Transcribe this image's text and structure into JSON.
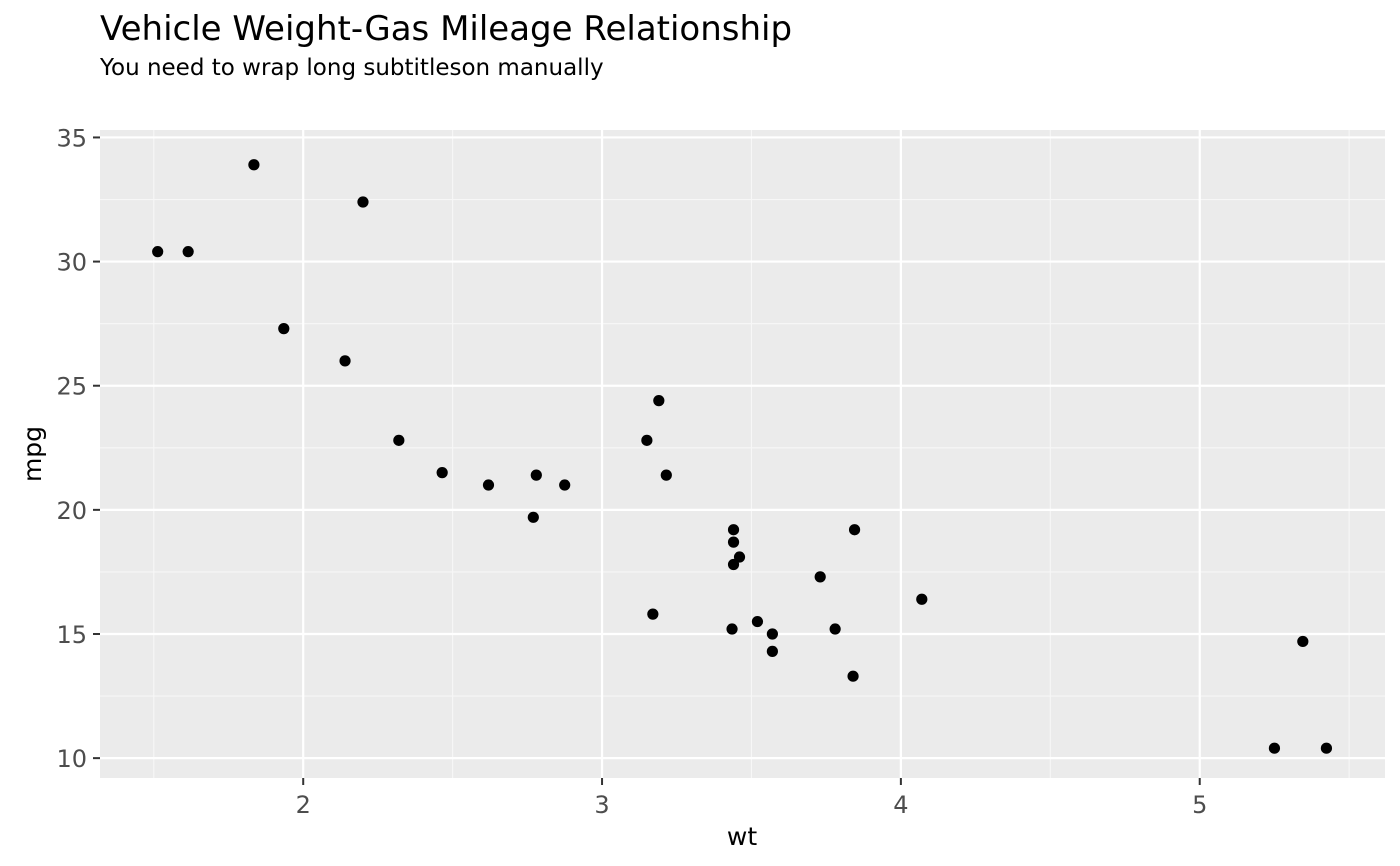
{
  "chart_data": {
    "type": "scatter",
    "title": "Vehicle Weight-Gas Mileage Relationship",
    "subtitle": "You need to wrap long subtitleson manually",
    "xlabel": "wt",
    "ylabel": "mpg",
    "xlim": [
      1.32,
      5.62
    ],
    "ylim": [
      9.2,
      35.3
    ],
    "x_ticks": [
      2,
      3,
      4,
      5
    ],
    "x_tick_labels": [
      "2",
      "3",
      "4",
      "5"
    ],
    "x_minor_ticks": [
      1.5,
      2.5,
      3.5,
      4.5,
      5.5
    ],
    "y_ticks": [
      10,
      15,
      20,
      25,
      30,
      35
    ],
    "y_tick_labels": [
      "10",
      "15",
      "20",
      "25",
      "30",
      "35"
    ],
    "y_minor_ticks": [
      12.5,
      17.5,
      22.5,
      27.5,
      32.5
    ],
    "grid": true,
    "legend": "none",
    "colors": {
      "panel_background": "#ebebeb",
      "grid_major": "#ffffff",
      "grid_minor": "#f7f7f7",
      "point": "#000000",
      "tick_text": "#4d4d4d",
      "tick_mark": "#333333"
    },
    "points": [
      {
        "x": 2.62,
        "y": 21.0
      },
      {
        "x": 2.875,
        "y": 21.0
      },
      {
        "x": 2.32,
        "y": 22.8
      },
      {
        "x": 3.215,
        "y": 21.4
      },
      {
        "x": 3.44,
        "y": 18.7
      },
      {
        "x": 3.46,
        "y": 18.1
      },
      {
        "x": 3.57,
        "y": 14.3
      },
      {
        "x": 3.19,
        "y": 24.4
      },
      {
        "x": 3.15,
        "y": 22.8
      },
      {
        "x": 3.44,
        "y": 19.2
      },
      {
        "x": 3.44,
        "y": 17.8
      },
      {
        "x": 4.07,
        "y": 16.4
      },
      {
        "x": 3.73,
        "y": 17.3
      },
      {
        "x": 3.78,
        "y": 15.2
      },
      {
        "x": 5.25,
        "y": 10.4
      },
      {
        "x": 5.424,
        "y": 10.4
      },
      {
        "x": 5.345,
        "y": 14.7
      },
      {
        "x": 2.2,
        "y": 32.4
      },
      {
        "x": 1.615,
        "y": 30.4
      },
      {
        "x": 1.835,
        "y": 33.9
      },
      {
        "x": 2.465,
        "y": 21.5
      },
      {
        "x": 3.52,
        "y": 15.5
      },
      {
        "x": 3.435,
        "y": 15.2
      },
      {
        "x": 3.84,
        "y": 13.3
      },
      {
        "x": 3.845,
        "y": 19.2
      },
      {
        "x": 1.935,
        "y": 27.3
      },
      {
        "x": 2.14,
        "y": 26.0
      },
      {
        "x": 1.513,
        "y": 30.4
      },
      {
        "x": 3.17,
        "y": 15.8
      },
      {
        "x": 2.77,
        "y": 19.7
      },
      {
        "x": 3.57,
        "y": 15.0
      },
      {
        "x": 2.78,
        "y": 21.4
      }
    ]
  }
}
